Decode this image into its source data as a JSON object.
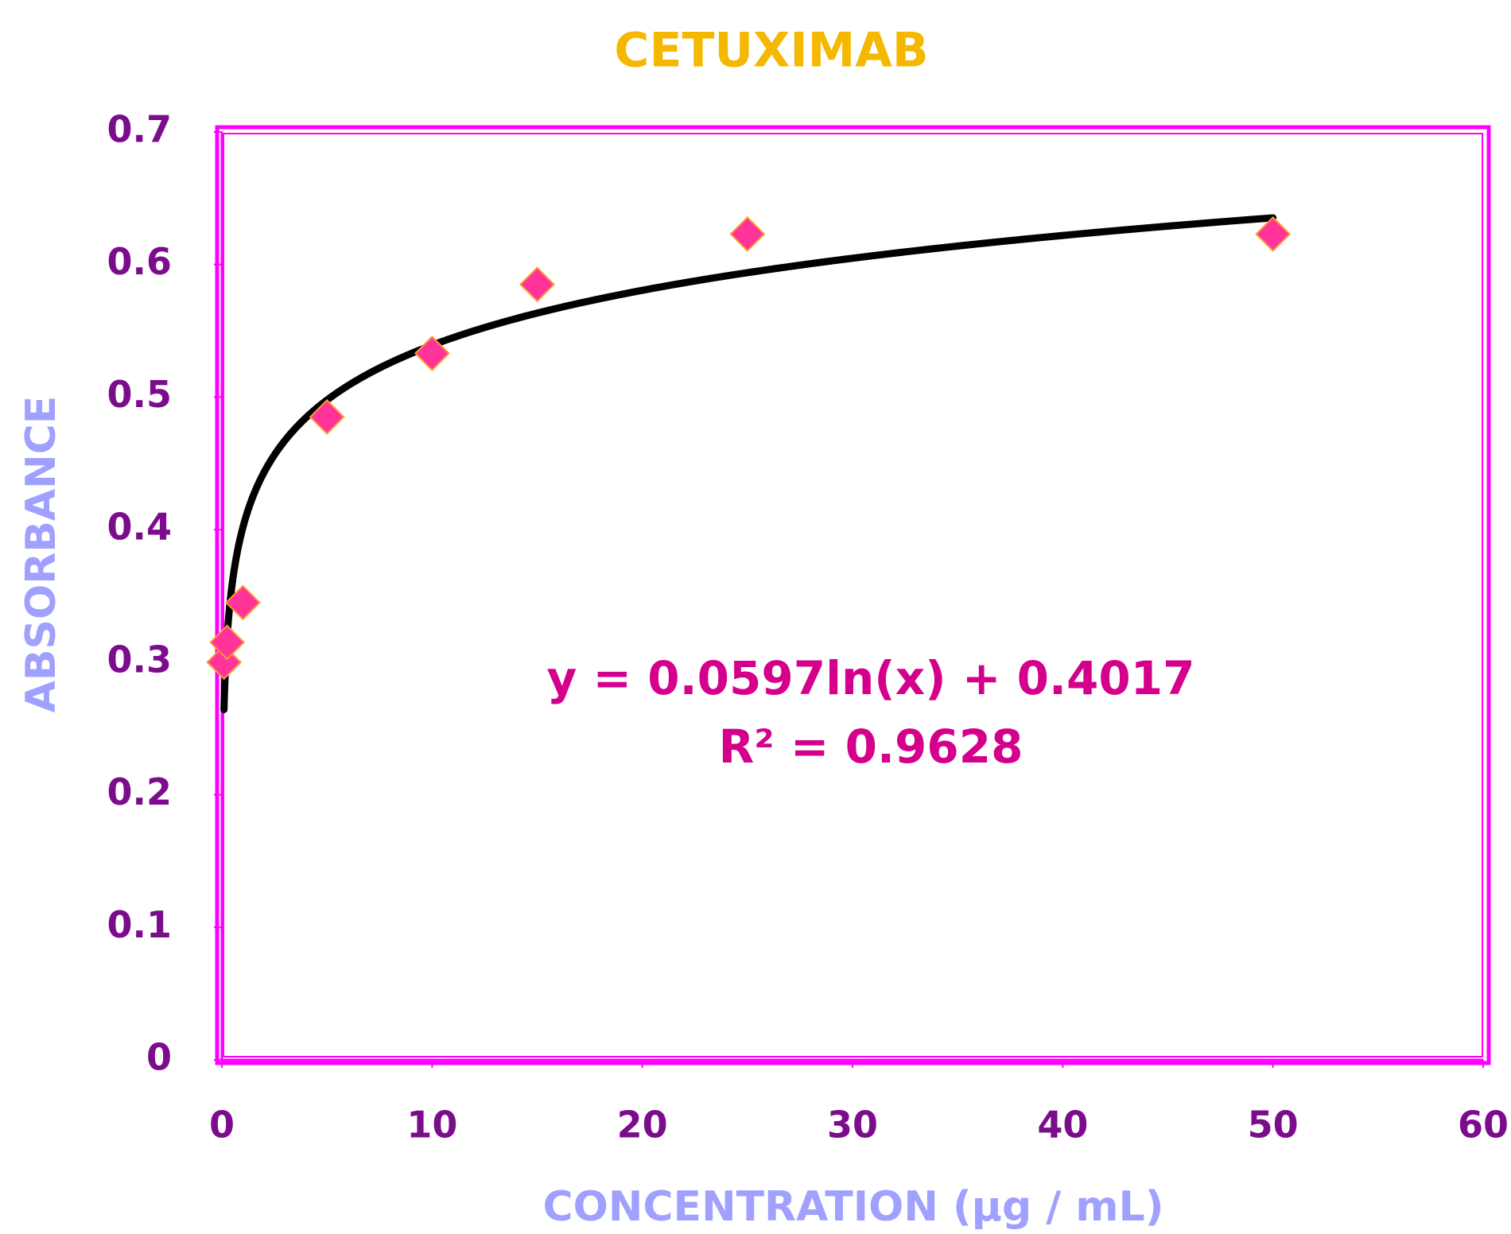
{
  "chart_data": {
    "type": "scatter",
    "title": "CETUXIMAB",
    "x_label": "CONCENTRATION (µg / mL)",
    "y_label": "ABSORBANCE",
    "series": [
      {
        "name": "CETUXIMAB",
        "color": "#ff3399",
        "x": [
          0.1,
          0.25,
          1,
          5,
          10,
          15,
          25,
          50
        ],
        "values": [
          0.3,
          0.315,
          0.345,
          0.485,
          0.533,
          0.585,
          0.623,
          0.623
        ]
      }
    ],
    "trendline": {
      "type": "log",
      "coefficients": [
        0.0597,
        0.4017
      ],
      "xlim": [
        0.1,
        50
      ],
      "color": "#000000",
      "equation": "y = 0.0597ln(x) + 0.4017",
      "r_squared": "R² = 0.9628"
    },
    "xlim": [
      0,
      60
    ],
    "xticks": [
      0,
      10,
      20,
      30,
      40,
      50,
      60
    ],
    "ylim": [
      0,
      0.7
    ],
    "yticks": [
      0,
      0.1,
      0.2,
      0.3,
      0.4,
      0.5,
      0.6,
      0.7
    ],
    "grid": false
  }
}
